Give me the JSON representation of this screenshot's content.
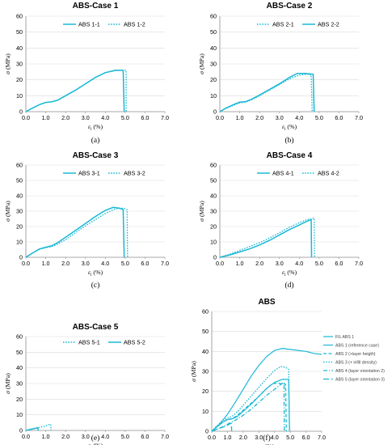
{
  "chart_data": [
    {
      "type": "line",
      "title": "ABS-Case 1",
      "letter": "(a)",
      "xlabel": "εl (%)",
      "ylabel": "σ (MPa)",
      "xlim": [
        0,
        7
      ],
      "ylim": [
        0,
        60
      ],
      "xticks": [
        "0.0",
        "1.0",
        "2.0",
        "3.0",
        "4.0",
        "5.0",
        "6.0",
        "7.0"
      ],
      "yticks": [
        "0",
        "10",
        "20",
        "30",
        "40",
        "50",
        "60"
      ],
      "grid": "horizontal",
      "legend": "top-right",
      "series": [
        {
          "name": "ABS 1-1",
          "style": "solid",
          "points": [
            [
              0,
              0
            ],
            [
              0.3,
              2
            ],
            [
              0.7,
              4.5
            ],
            [
              1.0,
              5.8
            ],
            [
              1.3,
              6.2
            ],
            [
              1.6,
              7.2
            ],
            [
              2.0,
              10
            ],
            [
              2.5,
              13.5
            ],
            [
              3.0,
              17.5
            ],
            [
              3.5,
              21.5
            ],
            [
              4.0,
              24.5
            ],
            [
              4.5,
              26
            ],
            [
              4.9,
              26
            ],
            [
              4.95,
              0
            ]
          ]
        },
        {
          "name": "ABS 1-2",
          "style": "dotted",
          "points": [
            [
              0,
              0
            ],
            [
              0.3,
              2
            ],
            [
              0.7,
              4.5
            ],
            [
              1.0,
              5.8
            ],
            [
              1.3,
              6.1
            ],
            [
              1.6,
              7.2
            ],
            [
              2.0,
              10
            ],
            [
              2.5,
              13.5
            ],
            [
              3.0,
              17.5
            ],
            [
              3.5,
              21.5
            ],
            [
              4.0,
              24.5
            ],
            [
              4.5,
              25.8
            ],
            [
              4.95,
              26
            ],
            [
              5.05,
              26
            ],
            [
              5.05,
              0
            ]
          ]
        }
      ]
    },
    {
      "type": "line",
      "title": "ABS-Case 2",
      "letter": "(b)",
      "xlabel": "εl (%)",
      "ylabel": "σ (MPa)",
      "xlim": [
        0,
        7
      ],
      "ylim": [
        0,
        60
      ],
      "xticks": [
        "0.0",
        "1.0",
        "2.0",
        "3.0",
        "4.0",
        "5.0",
        "6.0",
        "7.0"
      ],
      "yticks": [
        "0",
        "10",
        "20",
        "30",
        "40",
        "50",
        "60"
      ],
      "grid": "horizontal",
      "legend": "top-right",
      "series": [
        {
          "name": "ABS 2-1",
          "style": "dotted",
          "points": [
            [
              0,
              0
            ],
            [
              0.3,
              2
            ],
            [
              0.7,
              4
            ],
            [
              1.0,
              5.5
            ],
            [
              1.3,
              6
            ],
            [
              1.6,
              7.5
            ],
            [
              2.0,
              10
            ],
            [
              2.5,
              13.5
            ],
            [
              3.0,
              17
            ],
            [
              3.5,
              20.5
            ],
            [
              4.0,
              23
            ],
            [
              4.4,
              23.5
            ],
            [
              4.6,
              23
            ],
            [
              4.65,
              0
            ]
          ]
        },
        {
          "name": "ABS 2-2",
          "style": "solid",
          "points": [
            [
              0,
              0
            ],
            [
              0.3,
              2.2
            ],
            [
              0.7,
              4.5
            ],
            [
              1.0,
              6
            ],
            [
              1.3,
              6.3
            ],
            [
              1.6,
              7.8
            ],
            [
              2.0,
              10.5
            ],
            [
              2.5,
              14
            ],
            [
              3.0,
              17.5
            ],
            [
              3.5,
              21.5
            ],
            [
              3.9,
              24
            ],
            [
              4.3,
              24
            ],
            [
              4.7,
              23.5
            ],
            [
              4.75,
              0
            ]
          ]
        }
      ]
    },
    {
      "type": "line",
      "title": "ABS-Case 3",
      "letter": "(c)",
      "xlabel": "εl (%)",
      "ylabel": "σ (MPa)",
      "xlim": [
        0,
        7
      ],
      "ylim": [
        0,
        60
      ],
      "xticks": [
        "0.0",
        "1.0",
        "2.0",
        "3.0",
        "4.0",
        "5.0",
        "6.0",
        "7.0"
      ],
      "yticks": [
        "0",
        "10",
        "20",
        "30",
        "40",
        "50",
        "60"
      ],
      "grid": "horizontal",
      "legend": "top-right",
      "series": [
        {
          "name": "ABS 3-1",
          "style": "solid",
          "points": [
            [
              0,
              0
            ],
            [
              0.3,
              2.5
            ],
            [
              0.7,
              5.5
            ],
            [
              1.0,
              6.5
            ],
            [
              1.3,
              7.5
            ],
            [
              1.6,
              9.5
            ],
            [
              2.0,
              13
            ],
            [
              2.5,
              17.5
            ],
            [
              3.0,
              22
            ],
            [
              3.5,
              26.5
            ],
            [
              4.0,
              30.5
            ],
            [
              4.4,
              32.5
            ],
            [
              4.7,
              32
            ],
            [
              4.9,
              31
            ],
            [
              4.95,
              0
            ]
          ]
        },
        {
          "name": "ABS 3-2",
          "style": "dotted",
          "points": [
            [
              0,
              0
            ],
            [
              0.3,
              2.5
            ],
            [
              0.7,
              5.3
            ],
            [
              1.0,
              6.2
            ],
            [
              1.3,
              7
            ],
            [
              1.6,
              8.5
            ],
            [
              2.0,
              11.5
            ],
            [
              2.5,
              16
            ],
            [
              3.0,
              20.5
            ],
            [
              3.5,
              24.5
            ],
            [
              4.0,
              28.5
            ],
            [
              4.5,
              31.5
            ],
            [
              4.9,
              32
            ],
            [
              5.1,
              31
            ],
            [
              5.12,
              0
            ]
          ]
        }
      ]
    },
    {
      "type": "line",
      "title": "ABS-Case 4",
      "letter": "(d)",
      "xlabel": "εl (%)",
      "ylabel": "σ (MPa)",
      "xlim": [
        0,
        7
      ],
      "ylim": [
        0,
        60
      ],
      "xticks": [
        "0.0",
        "1.0",
        "2.0",
        "3.0",
        "4.0",
        "5.0",
        "6.0",
        "7.0"
      ],
      "yticks": [
        "0",
        "10",
        "20",
        "30",
        "40",
        "50",
        "60"
      ],
      "grid": "horizontal",
      "legend": "top-right",
      "series": [
        {
          "name": "ABS 4-1",
          "style": "solid",
          "points": [
            [
              0,
              0
            ],
            [
              0.5,
              1.5
            ],
            [
              1.0,
              3.5
            ],
            [
              1.5,
              5.5
            ],
            [
              2.0,
              8
            ],
            [
              2.5,
              11
            ],
            [
              3.0,
              14.5
            ],
            [
              3.5,
              18
            ],
            [
              4.0,
              21
            ],
            [
              4.4,
              23.5
            ],
            [
              4.6,
              24.5
            ],
            [
              4.62,
              0
            ]
          ]
        },
        {
          "name": "ABS 4-2",
          "style": "dotted",
          "points": [
            [
              0,
              0
            ],
            [
              0.5,
              2
            ],
            [
              1.0,
              4.5
            ],
            [
              1.5,
              7
            ],
            [
              2.0,
              9.5
            ],
            [
              2.5,
              12.5
            ],
            [
              3.0,
              16
            ],
            [
              3.5,
              19.5
            ],
            [
              4.0,
              22.5
            ],
            [
              4.4,
              24.5
            ],
            [
              4.6,
              25
            ],
            [
              4.75,
              25.5
            ],
            [
              4.77,
              0
            ]
          ]
        }
      ]
    },
    {
      "type": "line",
      "title": "ABS-Case 5",
      "letter": "(e)",
      "xlabel": "εl (%)",
      "ylabel": "σ (MPa)",
      "xlim": [
        0,
        7
      ],
      "ylim": [
        0,
        60
      ],
      "xticks": [
        "0.0",
        "1.0",
        "2.0",
        "3.0",
        "4.0",
        "5.0",
        "6.0",
        "7.0"
      ],
      "yticks": [
        "0",
        "10",
        "20",
        "30",
        "40",
        "50",
        "60"
      ],
      "grid": "horizontal",
      "legend": "top-right",
      "series": [
        {
          "name": "ABS 5-1",
          "style": "dotted",
          "points": [
            [
              0,
              0
            ],
            [
              0.3,
              1
            ],
            [
              0.6,
              1.8
            ],
            [
              0.9,
              2.5
            ],
            [
              1.1,
              3.5
            ],
            [
              1.25,
              4
            ],
            [
              1.27,
              0
            ]
          ]
        },
        {
          "name": "ABS 5-2",
          "style": "solid",
          "points": [
            [
              0,
              0
            ],
            [
              0.3,
              0.8
            ],
            [
              0.5,
              1.4
            ],
            [
              0.6,
              1.6
            ],
            [
              0.62,
              0
            ]
          ]
        }
      ]
    },
    {
      "type": "line",
      "title": "ABS",
      "letter": "(f)",
      "xlabel": "εl (%)",
      "ylabel": "σ (MPa)",
      "xlim": [
        0,
        7
      ],
      "ylim": [
        0,
        60
      ],
      "xticks": [
        "0.0",
        "1.0",
        "2.0",
        "3.0",
        "4.0",
        "5.0",
        "6.0",
        "7.0"
      ],
      "yticks": [
        "0",
        "10",
        "20",
        "30",
        "40",
        "50",
        "60"
      ],
      "grid": "horizontal",
      "legend": "right",
      "series": [
        {
          "name": "FIL ABS 1",
          "style": "solid",
          "points": [
            [
              0,
              0
            ],
            [
              0.5,
              3.5
            ],
            [
              1.0,
              8.5
            ],
            [
              1.5,
              14.5
            ],
            [
              2.0,
              21
            ],
            [
              2.5,
              27.5
            ],
            [
              3.0,
              33
            ],
            [
              3.5,
              37.5
            ],
            [
              4.0,
              40.5
            ],
            [
              4.5,
              41.5
            ],
            [
              5.0,
              41
            ],
            [
              5.5,
              40.5
            ],
            [
              6.0,
              40
            ],
            [
              6.5,
              39
            ],
            [
              7.0,
              38.5
            ]
          ]
        },
        {
          "name": "ABS 1 (reference case)",
          "style": "solid",
          "points": [
            [
              0,
              0
            ],
            [
              0.3,
              2
            ],
            [
              0.7,
              4.5
            ],
            [
              1.0,
              5.8
            ],
            [
              1.3,
              6.2
            ],
            [
              1.6,
              7.2
            ],
            [
              2.0,
              10
            ],
            [
              2.5,
              13.5
            ],
            [
              3.0,
              17.5
            ],
            [
              3.5,
              21.5
            ],
            [
              4.0,
              24.5
            ],
            [
              4.5,
              26
            ],
            [
              4.9,
              26
            ],
            [
              4.95,
              0
            ]
          ]
        },
        {
          "name": "ABS 2 (+layer heigth)",
          "style": "dashed",
          "points": [
            [
              0,
              0
            ],
            [
              0.3,
              2.2
            ],
            [
              0.7,
              4.5
            ],
            [
              1.0,
              6
            ],
            [
              1.3,
              6.3
            ],
            [
              1.6,
              7.8
            ],
            [
              2.0,
              10.5
            ],
            [
              2.5,
              14
            ],
            [
              3.0,
              17.5
            ],
            [
              3.5,
              21.5
            ],
            [
              3.9,
              24
            ],
            [
              4.3,
              24
            ],
            [
              4.7,
              23.5
            ],
            [
              4.75,
              0
            ]
          ]
        },
        {
          "name": "ABS 3 (+ infill density)",
          "style": "dotted",
          "points": [
            [
              0,
              0
            ],
            [
              0.3,
              2.5
            ],
            [
              0.7,
              5.5
            ],
            [
              1.0,
              6.5
            ],
            [
              1.3,
              7.5
            ],
            [
              1.6,
              9.5
            ],
            [
              2.0,
              13
            ],
            [
              2.5,
              17.5
            ],
            [
              3.0,
              22
            ],
            [
              3.5,
              26.5
            ],
            [
              4.0,
              30.5
            ],
            [
              4.4,
              32.5
            ],
            [
              4.7,
              32
            ],
            [
              4.9,
              31
            ],
            [
              4.95,
              0
            ]
          ]
        },
        {
          "name": "ABS 4 (layer orientation 2)",
          "style": "dashdot",
          "points": [
            [
              0,
              0
            ],
            [
              0.5,
              1.5
            ],
            [
              1.0,
              3.5
            ],
            [
              1.5,
              5.5
            ],
            [
              2.0,
              8
            ],
            [
              2.5,
              11
            ],
            [
              3.0,
              14.5
            ],
            [
              3.5,
              18
            ],
            [
              4.0,
              21
            ],
            [
              4.4,
              23.5
            ],
            [
              4.6,
              24.5
            ],
            [
              4.62,
              0
            ]
          ]
        },
        {
          "name": "ABS 5 (layer orientation 3)",
          "style": "longdash",
          "points": [
            [
              0,
              0
            ],
            [
              0.3,
              1
            ],
            [
              0.6,
              1.8
            ],
            [
              0.9,
              2.5
            ],
            [
              1.1,
              3.5
            ],
            [
              1.25,
              4
            ],
            [
              1.27,
              0
            ]
          ]
        }
      ]
    }
  ]
}
